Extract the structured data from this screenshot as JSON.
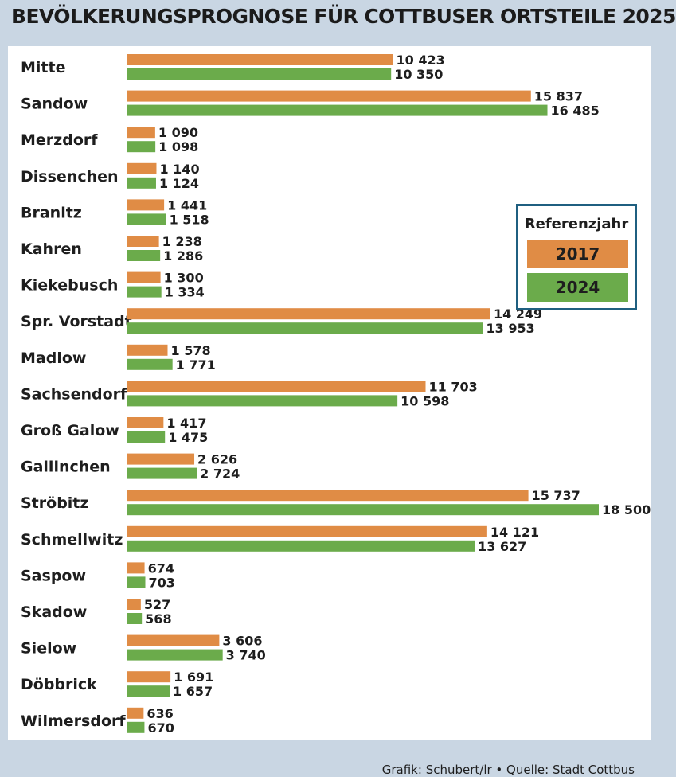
{
  "title": "BEVÖLKERUNGSPROGNOSE FÜR COTTBUSER ORTSTEILE 2025",
  "source": "Grafik: Schubert/lr • Quelle: Stadt Cottbus",
  "legend": {
    "title": "Referenzjahr",
    "entries": [
      {
        "label": "2017",
        "color": "#e08c45"
      },
      {
        "label": "2024",
        "color": "#6bab4b"
      }
    ]
  },
  "chart_data": {
    "type": "bar",
    "orientation": "horizontal",
    "grid": false,
    "legend_position": "right",
    "xlim": [
      0,
      18500
    ],
    "categories": [
      "Mitte",
      "Sandow",
      "Merzdorf",
      "Dissenchen",
      "Branitz",
      "Kahren",
      "Kiekebusch",
      "Spr. Vorstadt",
      "Madlow",
      "Sachsendorf",
      "Groß Galow",
      "Gallinchen",
      "Ströbitz",
      "Schmellwitz",
      "Saspow",
      "Skadow",
      "Sielow",
      "Döbbrick",
      "Wilmersdorf"
    ],
    "series": [
      {
        "name": "2017",
        "color": "#e08c45",
        "values": [
          10423,
          15837,
          1090,
          1140,
          1441,
          1238,
          1300,
          14249,
          1578,
          11703,
          1417,
          2626,
          15737,
          14121,
          674,
          527,
          3606,
          1691,
          636
        ],
        "labels": [
          "10 423",
          "15 837",
          "1 090",
          "1 140",
          "1 441",
          "1 238",
          "1 300",
          "14 249",
          "1 578",
          "11 703",
          "1 417",
          "2 626",
          "15 737",
          "14 121",
          "674",
          "527",
          "3 606",
          "1 691",
          "636"
        ]
      },
      {
        "name": "2024",
        "color": "#6bab4b",
        "values": [
          10350,
          16485,
          1098,
          1124,
          1518,
          1286,
          1334,
          13953,
          1771,
          10598,
          1475,
          2724,
          18500,
          13627,
          703,
          568,
          3740,
          1657,
          670
        ],
        "labels": [
          "10 350",
          "16 485",
          "1 098",
          "1 124",
          "1 518",
          "1 286",
          "1 334",
          "13 953",
          "1 771",
          "10 598",
          "1 475",
          "2 724",
          "18 500",
          "13 627",
          "703",
          "568",
          "3 740",
          "1 657",
          "670"
        ]
      }
    ]
  }
}
